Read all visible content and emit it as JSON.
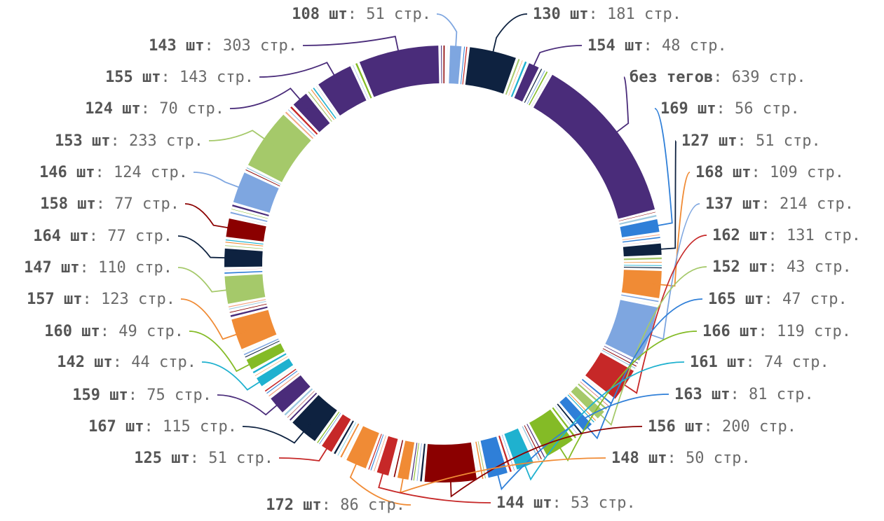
{
  "chart_data": {
    "type": "pie",
    "variant": "donut",
    "labeled_segments": [
      {
        "tag": "108 шт",
        "value": 51,
        "unit": "стр.",
        "color": "#7ea6e0"
      },
      {
        "tag": "130 шт",
        "value": 181,
        "unit": "стр.",
        "color": "#0e2240"
      },
      {
        "tag": "154 шт",
        "value": 48,
        "unit": "стр.",
        "color": "#4a2c7a"
      },
      {
        "tag": "без тегов",
        "value": 639,
        "unit": "стр.",
        "color": "#4a2c7a"
      },
      {
        "tag": "169 шт",
        "value": 56,
        "unit": "стр.",
        "color": "#2f7fd8"
      },
      {
        "tag": "127 шт",
        "value": 51,
        "unit": "стр.",
        "color": "#0e2240"
      },
      {
        "tag": "168 шт",
        "value": 109,
        "unit": "стр.",
        "color": "#f08b35"
      },
      {
        "tag": "137 шт",
        "value": 214,
        "unit": "стр.",
        "color": "#7ea6e0"
      },
      {
        "tag": "162 шт",
        "value": 131,
        "unit": "стр.",
        "color": "#c62828"
      },
      {
        "tag": "152 шт",
        "value": 43,
        "unit": "стр.",
        "color": "#a5c96a"
      },
      {
        "tag": "165 шт",
        "value": 47,
        "unit": "стр.",
        "color": "#2f7fd8"
      },
      {
        "tag": "166 шт",
        "value": 119,
        "unit": "стр.",
        "color": "#84bb26"
      },
      {
        "tag": "161 шт",
        "value": 74,
        "unit": "стр.",
        "color": "#1fb1cf"
      },
      {
        "tag": "163 шт",
        "value": 81,
        "unit": "стр.",
        "color": "#2f7fd8"
      },
      {
        "tag": "156 шт",
        "value": 200,
        "unit": "стр.",
        "color": "#8b0000"
      },
      {
        "tag": "148 шт",
        "value": 50,
        "unit": "стр.",
        "color": "#f08b35"
      },
      {
        "tag": "144 шт",
        "value": 53,
        "unit": "стр.",
        "color": "#c62828"
      },
      {
        "tag": "172 шт",
        "value": 86,
        "unit": "стр.",
        "color": "#f08b35"
      },
      {
        "tag": "125 шт",
        "value": 51,
        "unit": "стр.",
        "color": "#c62828"
      },
      {
        "tag": "167 шт",
        "value": 115,
        "unit": "стр.",
        "color": "#0e2240"
      },
      {
        "tag": "159 шт",
        "value": 75,
        "unit": "стр.",
        "color": "#4a2c7a"
      },
      {
        "tag": "142 шт",
        "value": 44,
        "unit": "стр.",
        "color": "#1fb1cf"
      },
      {
        "tag": "160 шт",
        "value": 49,
        "unit": "стр.",
        "color": "#84bb26"
      },
      {
        "tag": "157 шт",
        "value": 123,
        "unit": "стр.",
        "color": "#f08b35"
      },
      {
        "tag": "147 шт",
        "value": 110,
        "unit": "стр.",
        "color": "#a5c96a"
      },
      {
        "tag": "164 шт",
        "value": 77,
        "unit": "стр.",
        "color": "#0e2240"
      },
      {
        "tag": "158 шт",
        "value": 77,
        "unit": "стр.",
        "color": "#8b0000"
      },
      {
        "tag": "146 шт",
        "value": 124,
        "unit": "стр.",
        "color": "#7ea6e0"
      },
      {
        "tag": "153 шт",
        "value": 233,
        "unit": "стр.",
        "color": "#a5c96a"
      },
      {
        "tag": "124 шт",
        "value": 70,
        "unit": "стр.",
        "color": "#4a2c7a"
      },
      {
        "tag": "155 шт",
        "value": 143,
        "unit": "стр.",
        "color": "#4a2c7a"
      },
      {
        "tag": "143 шт",
        "value": 303,
        "unit": "стр.",
        "color": "#4a2c7a"
      }
    ],
    "separator": ": ",
    "legend": "none"
  }
}
